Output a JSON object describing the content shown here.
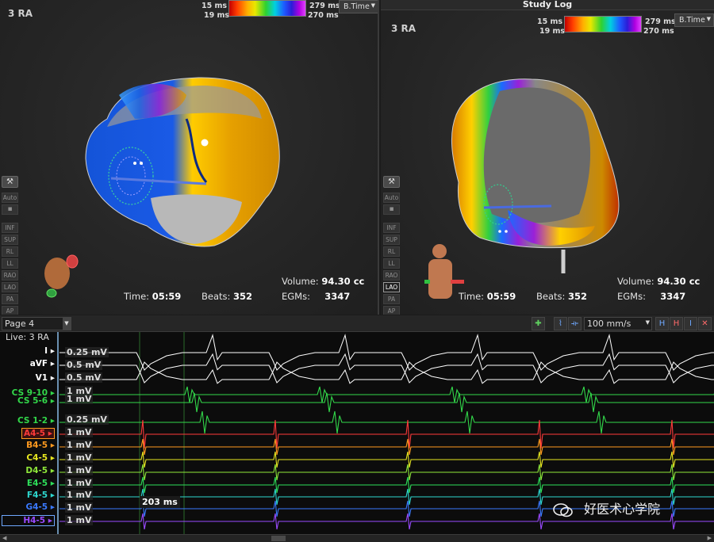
{
  "left_panel": {
    "name": "3 RA",
    "scale": {
      "top_left": "15 ms",
      "bottom_left": "19 ms",
      "top_right": "279 ms",
      "bottom_right": "270 ms"
    },
    "mode": "B.Time",
    "tool_icon": "pin-icon",
    "sidebar": [
      "Auto",
      "▪",
      "INF",
      "SUP",
      "RL",
      "LL",
      "RAO",
      "LAO",
      "PA",
      "AP"
    ],
    "time_label": "Time:",
    "time": "05:59",
    "beats_label": "Beats:",
    "beats": "352",
    "volume_label": "Volume:",
    "volume": "94.30 cc",
    "egms_label": "EGMs:",
    "egms": "3347"
  },
  "right_panel": {
    "title": "Study Log",
    "name": "3 RA",
    "scale": {
      "top_left": "15 ms",
      "bottom_left": "19 ms",
      "top_right": "279 ms",
      "bottom_right": "270 ms"
    },
    "mode": "B.Time",
    "tool_icon": "pin-icon",
    "sidebar": [
      "Auto",
      "▪",
      "INF",
      "SUP",
      "RL",
      "LL",
      "RAO",
      "LAO",
      "PA",
      "AP"
    ],
    "active_view": "LAO",
    "time_label": "Time:",
    "time": "05:59",
    "beats_label": "Beats:",
    "beats": "352",
    "volume_label": "Volume:",
    "volume": "94.30 cc",
    "egms_label": "EGMs:",
    "egms": "3347"
  },
  "waveforms": {
    "page": "Page 4",
    "live_label": "Live: 3 RA",
    "speed": "100 mm/s",
    "channels": [
      {
        "label": "I",
        "scale": "0.25 mV",
        "color": "#ffffff"
      },
      {
        "label": "aVF",
        "scale": "0.5 mV",
        "color": "#ffffff"
      },
      {
        "label": "V1",
        "scale": "0.5 mV",
        "color": "#ffffff"
      },
      {
        "label": "CS 9-10",
        "scale": "1 mV",
        "color": "#32d84a"
      },
      {
        "label": "CS 5-6",
        "scale": "1 mV",
        "color": "#32d84a"
      },
      {
        "label": "CS 1-2",
        "scale": "0.25 mV",
        "color": "#32d84a"
      },
      {
        "label": "A4-5",
        "scale": "1 mV",
        "color": "#ff3a3a"
      },
      {
        "label": "B4-5",
        "scale": "1 mV",
        "color": "#ff9a1f"
      },
      {
        "label": "C4-5",
        "scale": "1 mV",
        "color": "#e8e820"
      },
      {
        "label": "D4-5",
        "scale": "1 mV",
        "color": "#8fe83a"
      },
      {
        "label": "E4-5",
        "scale": "1 mV",
        "color": "#2ee05a"
      },
      {
        "label": "F4-5",
        "scale": "1 mV",
        "color": "#2ed8d0"
      },
      {
        "label": "G4-5",
        "scale": "1 mV",
        "color": "#3a7aff"
      },
      {
        "label": "H4-5",
        "scale": "1 mV",
        "color": "#9a4aff"
      }
    ],
    "measurement": "203 ms",
    "watermark": "好医术心学院"
  },
  "colors": {
    "background": "#1b1b1b",
    "wave_bg": "#0c0c0c",
    "accent": "#6fa8ff"
  }
}
